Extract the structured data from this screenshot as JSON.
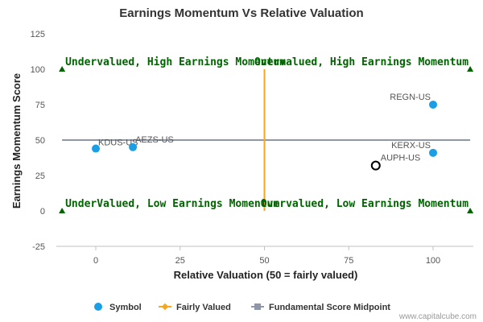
{
  "chart_data": {
    "type": "scatter",
    "title": "Earnings Momentum Vs Relative Valuation",
    "xlabel": "Relative Valuation (50 = fairly valued)",
    "ylabel": "Earnings Momentum Score",
    "xlim": [
      -11,
      112
    ],
    "ylim": [
      -25,
      125
    ],
    "x_ticks": [
      0,
      25,
      50,
      75,
      100
    ],
    "y_ticks": [
      -25,
      0,
      25,
      50,
      75,
      100,
      125
    ],
    "grid": false,
    "legend_position": "bottom",
    "series": [
      {
        "name": "Symbol",
        "color": "#1a9ee6",
        "points": [
          {
            "label": "KDUS-US",
            "x": 0,
            "y": 44
          },
          {
            "label": "AEZS-US",
            "x": 11,
            "y": 45
          },
          {
            "label": "REGN-US",
            "x": 100,
            "y": 75
          },
          {
            "label": "KERX-US",
            "x": 100,
            "y": 41
          },
          {
            "label": "AUPH-US",
            "x": 83,
            "y": 32,
            "highlighted": true
          }
        ]
      },
      {
        "name": "Fairly Valued",
        "color": "#f5a623",
        "x": [
          50,
          50
        ],
        "y": [
          0,
          100
        ]
      },
      {
        "name": "Fundamental Score Midpoint",
        "color": "#8d97a8",
        "x": [
          -10,
          111
        ],
        "y": [
          50,
          50
        ]
      }
    ],
    "quadrant_markers": [
      {
        "x": -10,
        "y": 100
      },
      {
        "x": 111,
        "y": 100
      },
      {
        "x": -10,
        "y": 0
      },
      {
        "x": 111,
        "y": 0
      }
    ],
    "annotations": [
      {
        "text": "Undervalued, High Earnings Momentum",
        "x": -10,
        "y": 100,
        "anchor": "start"
      },
      {
        "text": "Overvalued, High Earnings Momentum",
        "x": 111,
        "y": 100,
        "anchor": "end"
      },
      {
        "text": "UnderValued, Low Earnings Momentum",
        "x": -10,
        "y": 0,
        "anchor": "start"
      },
      {
        "text": "Overvalued, Low Earnings Momentum",
        "x": 111,
        "y": 0,
        "anchor": "end"
      }
    ],
    "marker_color": "#006400",
    "highlight_stroke": "#000000"
  },
  "credit": "www.capitalcube.com"
}
